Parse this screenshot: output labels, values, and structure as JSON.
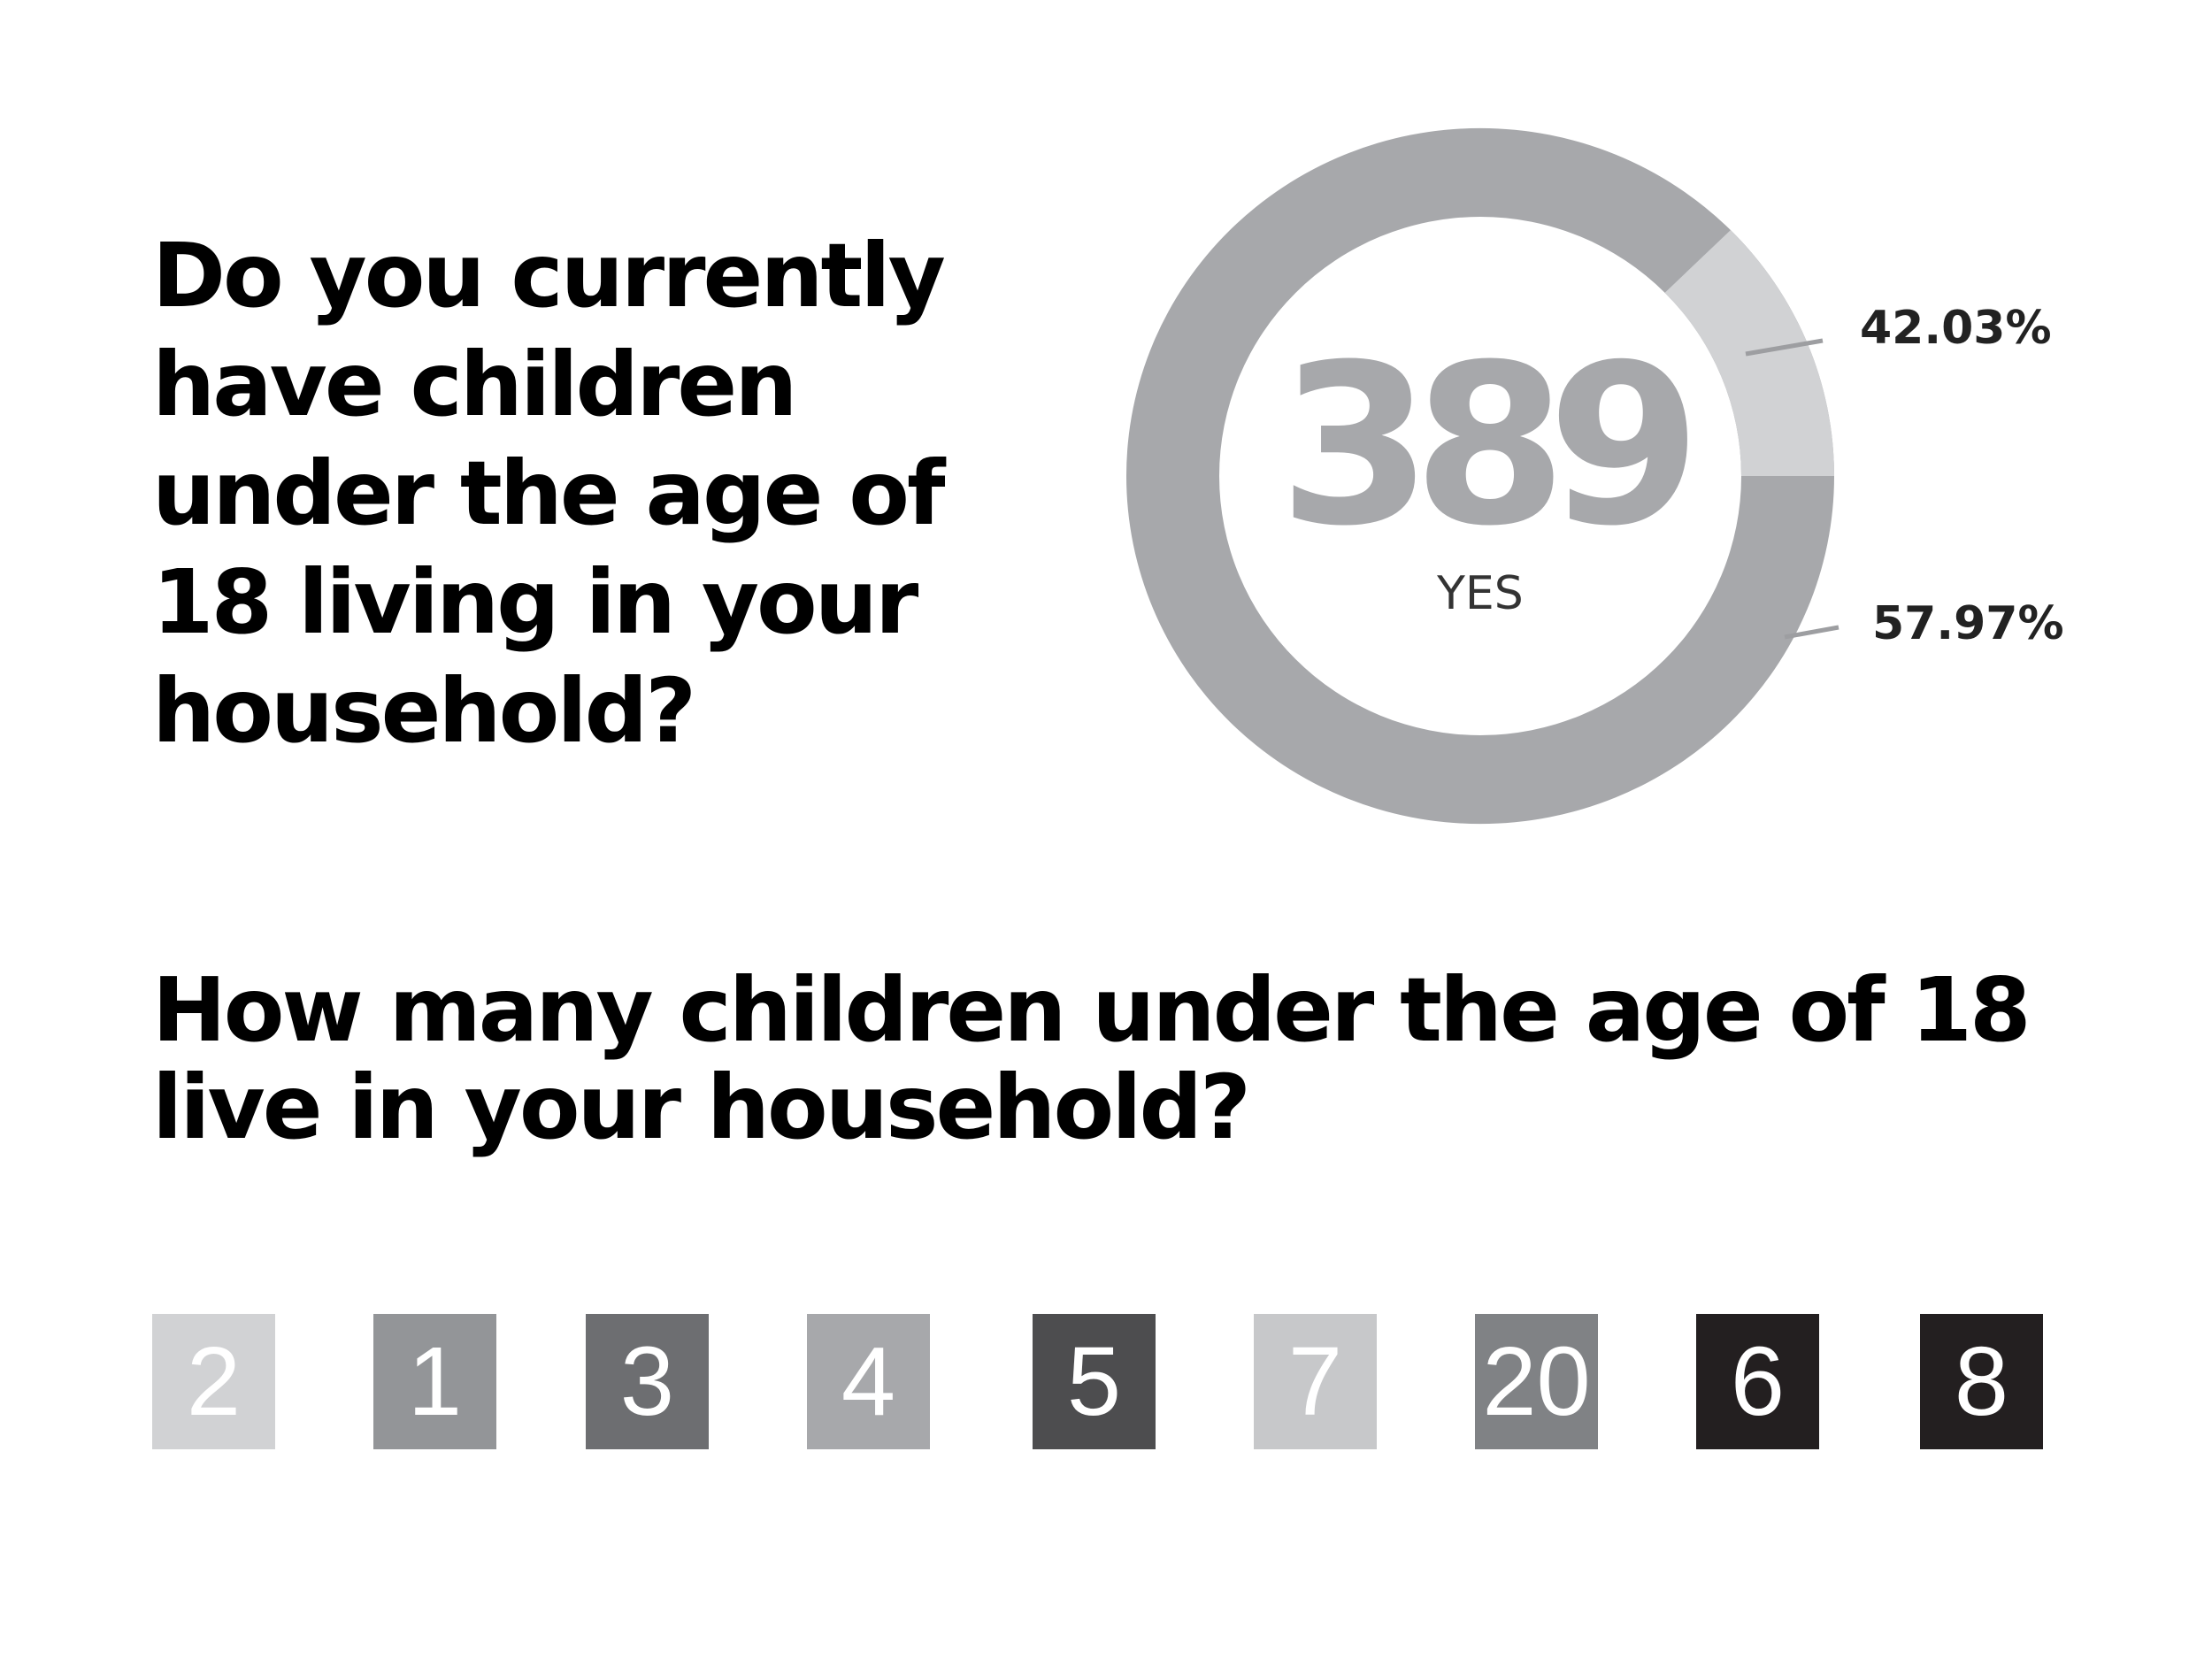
{
  "chart_data": [
    {
      "type": "pie",
      "title": "Do you currently have children under the age of 18 living in your household?",
      "center": {
        "value": "389",
        "label": "YES"
      },
      "slices": [
        {
          "label": "42.03%",
          "value": 42.03,
          "color": "#d1d2d4"
        },
        {
          "label": "57.97%",
          "value": 57.97,
          "color": "#a7a8ab"
        }
      ],
      "highlight_color": "#d1d2d4",
      "base_color": "#a7a8ab"
    },
    {
      "type": "table",
      "title": "How many children under the age of 18 live in your household?",
      "categories": [
        "2",
        "1",
        "3",
        "4",
        "5",
        "7",
        "20",
        "6",
        "8"
      ],
      "colors": [
        "#d1d2d4",
        "#939598",
        "#6d6e71",
        "#a7a8ab",
        "#4d4d4f",
        "#c7c8ca",
        "#808285",
        "#231f20",
        "#231f20"
      ]
    }
  ]
}
